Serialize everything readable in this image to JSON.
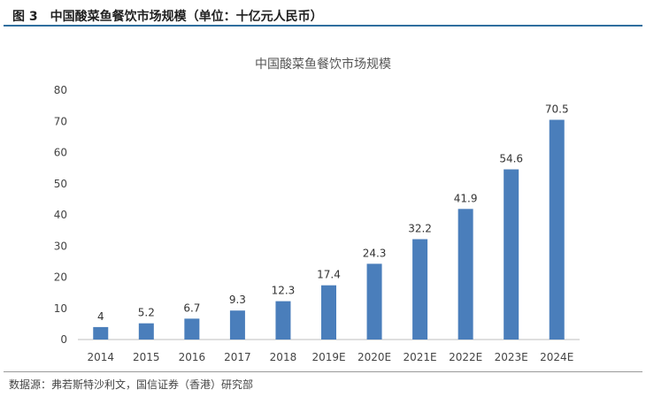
{
  "figure": {
    "caption": "图 3　中国酸菜鱼餐饮市场规模（单位：十亿元人民币）",
    "source": "数据源：弗若斯特沙利文，国信证券（香港）研究部"
  },
  "colors": {
    "bar": "#4a7ebb",
    "rule": "#2f6f9f",
    "axis": "#bfbfbf"
  },
  "chart_data": {
    "type": "bar",
    "title": "中国酸菜鱼餐饮市场规模",
    "categories": [
      "2014",
      "2015",
      "2016",
      "2017",
      "2018",
      "2019E",
      "2020E",
      "2021E",
      "2022E",
      "2023E",
      "2024E"
    ],
    "values": [
      4,
      5.2,
      6.7,
      9.3,
      12.3,
      17.4,
      24.3,
      32.2,
      41.9,
      54.6,
      70.5
    ],
    "data_labels": [
      "4",
      "5.2",
      "6.7",
      "9.3",
      "12.3",
      "17.4",
      "24.3",
      "32.2",
      "41.9",
      "54.6",
      "70.5"
    ],
    "ylim": [
      0,
      80
    ],
    "yticks": [
      0,
      10,
      20,
      30,
      40,
      50,
      60,
      70,
      80
    ],
    "grid": false,
    "legend": "none"
  }
}
